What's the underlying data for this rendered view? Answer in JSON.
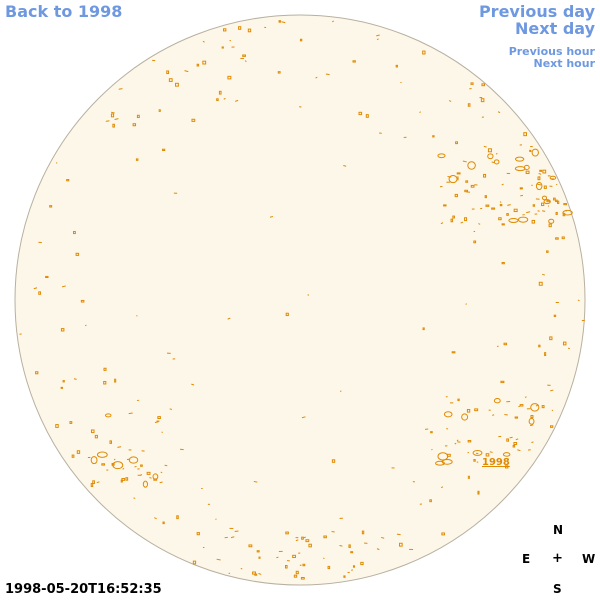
{
  "navigation": {
    "back": "Back to 1998",
    "previous_day": "Previous day",
    "next_day": "Next day",
    "previous_hour": "Previous hour",
    "next_hour": "Next hour"
  },
  "compass": {
    "north": "N",
    "east": "E",
    "center": "+",
    "west": "W",
    "south": "S"
  },
  "timestamp": "1998-05-20T16:52:35",
  "region_label": "1998",
  "colors": {
    "disk_fill": "#fdf7e9",
    "disk_outline": "#b8b0a0",
    "contour": "#e08a00",
    "link": "#6e98e0"
  }
}
